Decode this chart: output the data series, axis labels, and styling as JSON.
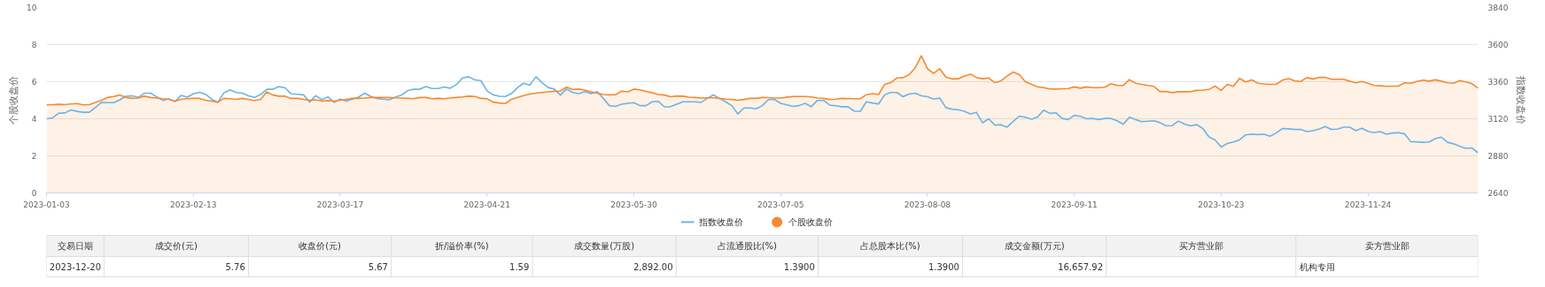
{
  "chart_data": {
    "type": "line",
    "categories": [
      "2023-01-03",
      null,
      null,
      null,
      null,
      null,
      null,
      null,
      null,
      null,
      null,
      null,
      null,
      null,
      null,
      null,
      null,
      null,
      null,
      null,
      null,
      null,
      null,
      null,
      "2023-02-13",
      null,
      null,
      null,
      null,
      null,
      null,
      null,
      null,
      null,
      null,
      null,
      null,
      null,
      null,
      null,
      null,
      null,
      null,
      null,
      null,
      null,
      null,
      null,
      "2023-03-17",
      null,
      null,
      null,
      null,
      null,
      null,
      null,
      null,
      null,
      null,
      null,
      null,
      null,
      null,
      null,
      null,
      null,
      null,
      null,
      null,
      null,
      null,
      null,
      "2023-04-21",
      null,
      null,
      null,
      null,
      null,
      null,
      null,
      null,
      null,
      null,
      null,
      null,
      null,
      null,
      null,
      null,
      null,
      null,
      null,
      null,
      null,
      null,
      null,
      "2023-05-30",
      null,
      null,
      null,
      null,
      null,
      null,
      null,
      null,
      null,
      null,
      null,
      null,
      null,
      null,
      null,
      null,
      null,
      null,
      null,
      null,
      null,
      null,
      null,
      "2023-07-05",
      null,
      null,
      null,
      null,
      null,
      null,
      null,
      null,
      null,
      null,
      null,
      null,
      null,
      null,
      null,
      null,
      null,
      null,
      null,
      null,
      null,
      null,
      null,
      "2023-08-08",
      null,
      null,
      null,
      null,
      null,
      null,
      null,
      null,
      null,
      null,
      null,
      null,
      null,
      null,
      null,
      null,
      null,
      null,
      null,
      null,
      null,
      null,
      null,
      "2023-09-11",
      null,
      null,
      null,
      null,
      null,
      null,
      null,
      null,
      null,
      null,
      null,
      null,
      null,
      null,
      null,
      null,
      null,
      null,
      null,
      null,
      null,
      null,
      null,
      "2023-10-23",
      null,
      null,
      null,
      null,
      null,
      null,
      null,
      null,
      null,
      null,
      null,
      null,
      null,
      null,
      null,
      null,
      null,
      null,
      null,
      null,
      null,
      null,
      null,
      "2023-11-24",
      null,
      null,
      null,
      null,
      null,
      null,
      null,
      null,
      null,
      null,
      null,
      null,
      null,
      null,
      null,
      null,
      null,
      null
    ],
    "series": [
      {
        "name": "指数收盘价",
        "axis": "y2",
        "color": "#6cb4e6",
        "values": [
          3120,
          3126,
          3156,
          3158,
          3177,
          3168,
          3162,
          3162,
          3194,
          3226,
          3224,
          3224,
          3243,
          3266,
          3269,
          3258,
          3286,
          3286,
          3262,
          3239,
          3249,
          3232,
          3271,
          3260,
          3281,
          3292,
          3279,
          3247,
          3226,
          3288,
          3307,
          3290,
          3286,
          3269,
          3258,
          3277,
          3311,
          3311,
          3328,
          3320,
          3281,
          3279,
          3275,
          3228,
          3269,
          3243,
          3262,
          3226,
          3247,
          3235,
          3247,
          3260,
          3286,
          3264,
          3252,
          3247,
          3243,
          3260,
          3273,
          3301,
          3311,
          3311,
          3328,
          3316,
          3316,
          3326,
          3318,
          3341,
          3384,
          3392,
          3371,
          3367,
          3301,
          3275,
          3266,
          3264,
          3284,
          3322,
          3350,
          3337,
          3392,
          3354,
          3322,
          3312,
          3274,
          3312,
          3290,
          3283,
          3296,
          3283,
          3296,
          3252,
          3205,
          3200,
          3214,
          3220,
          3224,
          3205,
          3205,
          3230,
          3233,
          3197,
          3198,
          3214,
          3230,
          3230,
          3230,
          3226,
          3252,
          3274,
          3252,
          3230,
          3205,
          3151,
          3190,
          3190,
          3184,
          3205,
          3244,
          3244,
          3220,
          3210,
          3200,
          3205,
          3220,
          3198,
          3239,
          3239,
          3209,
          3204,
          3198,
          3198,
          3170,
          3167,
          3230,
          3222,
          3216,
          3275,
          3290,
          3290,
          3263,
          3280,
          3286,
          3269,
          3263,
          3247,
          3254,
          3192,
          3182,
          3179,
          3168,
          3151,
          3162,
          3094,
          3120,
          3079,
          3082,
          3066,
          3102,
          3137,
          3130,
          3117,
          3132,
          3176,
          3155,
          3159,
          3122,
          3115,
          3142,
          3136,
          3120,
          3122,
          3115,
          3122,
          3122,
          3107,
          3084,
          3130,
          3115,
          3101,
          3104,
          3107,
          3095,
          3074,
          3076,
          3105,
          3086,
          3074,
          3082,
          3057,
          3003,
          2983,
          2937,
          2960,
          2970,
          2983,
          3016,
          3020,
          3018,
          3020,
          3007,
          3028,
          3057,
          3055,
          3051,
          3051,
          3037,
          3043,
          3053,
          3070,
          3051,
          3053,
          3066,
          3066,
          3043,
          3059,
          3039,
          3030,
          3037,
          3020,
          3028,
          3030,
          3022,
          2972,
          2970,
          2968,
          2970,
          2991,
          3001,
          2968,
          2958,
          2941,
          2929,
          2931,
          2900
        ]
      },
      {
        "name": "个股收盘价",
        "type": "area",
        "color": "#f68a2e",
        "values": [
          4.75,
          4.76,
          4.78,
          4.76,
          4.8,
          4.82,
          4.75,
          4.76,
          4.88,
          5.0,
          5.15,
          5.2,
          5.28,
          5.15,
          5.1,
          5.12,
          5.22,
          5.15,
          5.12,
          5.08,
          5.05,
          4.95,
          5.05,
          5.08,
          5.1,
          5.1,
          5.0,
          4.95,
          4.9,
          5.1,
          5.08,
          5.05,
          5.1,
          5.05,
          4.98,
          5.05,
          5.45,
          5.28,
          5.22,
          5.22,
          5.1,
          5.1,
          5.05,
          5.0,
          5.02,
          4.95,
          4.98,
          4.95,
          5.0,
          5.05,
          5.1,
          5.1,
          5.12,
          5.15,
          5.15,
          5.15,
          5.15,
          5.13,
          5.12,
          5.1,
          5.08,
          5.15,
          5.15,
          5.08,
          5.1,
          5.08,
          5.12,
          5.15,
          5.18,
          5.22,
          5.2,
          5.1,
          5.08,
          4.9,
          4.85,
          4.82,
          5.05,
          5.15,
          5.25,
          5.33,
          5.38,
          5.42,
          5.45,
          5.48,
          5.5,
          5.7,
          5.58,
          5.6,
          5.55,
          5.45,
          5.38,
          5.31,
          5.29,
          5.3,
          5.49,
          5.45,
          5.6,
          5.56,
          5.48,
          5.4,
          5.31,
          5.28,
          5.19,
          5.22,
          5.22,
          5.17,
          5.15,
          5.12,
          5.13,
          5.13,
          5.1,
          5.06,
          5.04,
          5.0,
          5.04,
          5.1,
          5.1,
          5.15,
          5.14,
          5.12,
          5.12,
          5.16,
          5.2,
          5.2,
          5.2,
          5.18,
          5.12,
          5.1,
          5.04,
          5.06,
          5.1,
          5.08,
          5.08,
          5.08,
          5.3,
          5.36,
          5.31,
          5.86,
          5.95,
          6.2,
          6.22,
          6.38,
          6.75,
          7.4,
          6.7,
          6.45,
          6.7,
          6.25,
          6.15,
          6.16,
          6.3,
          6.41,
          6.23,
          6.16,
          6.2,
          5.95,
          6.04,
          6.3,
          6.52,
          6.38,
          6.0,
          5.86,
          5.72,
          5.68,
          5.61,
          5.6,
          5.62,
          5.63,
          5.72,
          5.65,
          5.72,
          5.68,
          5.68,
          5.7,
          5.89,
          5.8,
          5.8,
          6.11,
          5.92,
          5.86,
          5.8,
          5.75,
          5.47,
          5.47,
          5.41,
          5.46,
          5.46,
          5.46,
          5.53,
          5.55,
          5.58,
          5.77,
          5.53,
          5.86,
          5.75,
          6.18,
          5.99,
          6.1,
          5.92,
          5.88,
          5.86,
          5.87,
          6.08,
          6.17,
          6.05,
          6.01,
          6.22,
          6.15,
          6.23,
          6.23,
          6.13,
          6.13,
          6.13,
          6.03,
          5.94,
          6.01,
          5.92,
          5.8,
          5.78,
          5.75,
          5.76,
          5.77,
          5.94,
          5.92,
          6.01,
          6.08,
          6.03,
          6.1,
          6.03,
          5.94,
          5.92,
          6.06,
          5.99,
          5.89,
          5.65
        ]
      }
    ],
    "ylabel": "个股收盘价",
    "y2label": "指数收盘价",
    "ylim": [
      0,
      10
    ],
    "yticks": [
      0,
      2,
      4,
      6,
      8,
      10
    ],
    "y2lim": [
      2640,
      3840
    ],
    "y2ticks": [
      2640,
      2880,
      3120,
      3360,
      3600,
      3840
    ],
    "grid": "y",
    "legend": "bottom",
    "annotations": [
      "交易日期",
      "成交价(元)",
      "收盘价(元)",
      "折/溢价率(%)",
      "成交数量(万股)",
      "占流通股比(%)",
      "占总股本比(%)",
      "成交金额(万元)",
      "买方营业部",
      "卖方营业部",
      "2023-12-20",
      "5.76",
      "5.67",
      "1.59",
      "2,892.00",
      "1.3900",
      "1.3900",
      "16,657.92",
      null,
      "机构专用"
    ]
  }
}
